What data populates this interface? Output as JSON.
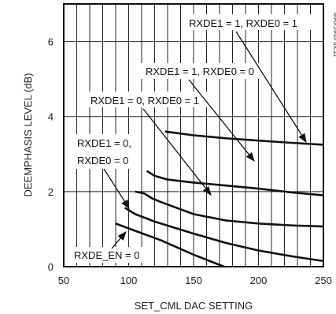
{
  "chart_data": {
    "type": "line",
    "title": "",
    "xlabel": "SET_CML DAC SETTING",
    "ylabel": "DEEMPHASIS LEVEL (dB)",
    "xlim": [
      50,
      250
    ],
    "ylim": [
      0,
      7
    ],
    "x_ticks": [
      "50",
      "100",
      "150",
      "200",
      "250"
    ],
    "y_ticks": [
      "0",
      "2",
      "4",
      "6"
    ],
    "grid": {
      "x_minor_step": 10,
      "y_major_step": 2,
      "enabled": true
    },
    "figure_id": "MAX3945 toc11",
    "series": [
      {
        "label": "RXDE1 = 1, RXDE0 = 1",
        "x": [
          128,
          150,
          175,
          200,
          225,
          250
        ],
        "y": [
          3.6,
          3.5,
          3.42,
          3.36,
          3.3,
          3.25
        ]
      },
      {
        "label": "RXDE1 = 1, RXDE0 = 0",
        "x": [
          114,
          120,
          130,
          150,
          175,
          200,
          225,
          250
        ],
        "y": [
          2.55,
          2.42,
          2.32,
          2.24,
          2.16,
          2.08,
          1.98,
          1.9
        ]
      },
      {
        "label": "RXDE1 = 0, RXDE0 = 1",
        "x": [
          105,
          112,
          118,
          125,
          150,
          175,
          200,
          225,
          250
        ],
        "y": [
          2.0,
          1.95,
          1.82,
          1.72,
          1.4,
          1.23,
          1.15,
          1.1,
          1.07
        ]
      },
      {
        "label": "RXDE1 = 0, RXDE0 = 0",
        "x": [
          97,
          105,
          120,
          150,
          175,
          200,
          225,
          250
        ],
        "y": [
          1.57,
          1.4,
          1.2,
          0.88,
          0.63,
          0.43,
          0.28,
          0.15
        ]
      },
      {
        "label": "RXDE_EN = 0",
        "x": [
          90,
          100,
          125,
          150,
          175,
          200
        ],
        "y": [
          1.15,
          1.02,
          0.7,
          0.32,
          -0.02,
          -0.25
        ]
      }
    ],
    "annotations": [
      {
        "text": "RXDE1 = 1, RXDE0 = 1"
      },
      {
        "text": "RXDE1 = 1, RXDE0 = 0"
      },
      {
        "text": "RXDE1 = 0, RXDE0 = 1"
      },
      {
        "text": "RXDE1 = 0,"
      },
      {
        "text": "RXDE0 = 0"
      },
      {
        "text": "RXDE_EN = 0"
      }
    ]
  }
}
